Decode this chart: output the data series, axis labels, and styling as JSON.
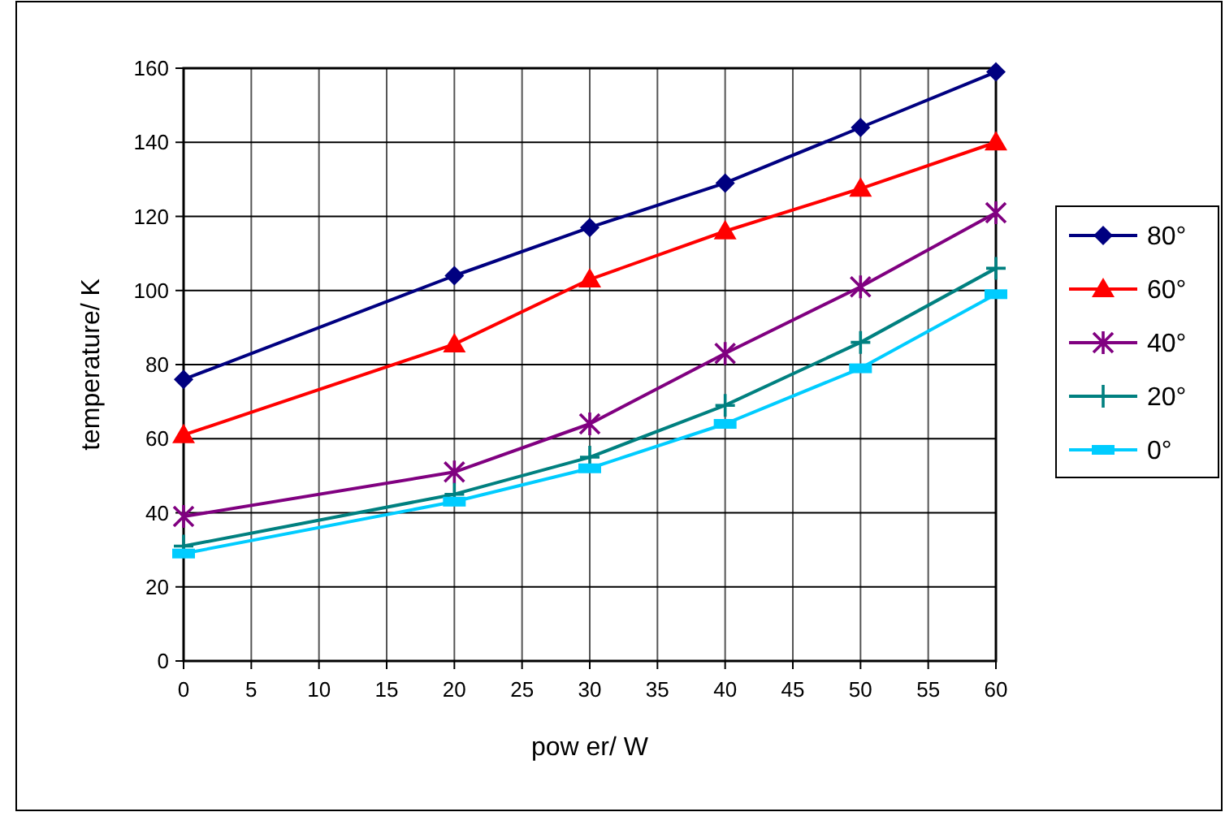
{
  "chart_data": {
    "type": "line",
    "xlabel": "pow er/ W",
    "ylabel": "temperature/ K",
    "x": [
      0,
      20,
      30,
      40,
      50,
      60
    ],
    "xlim": [
      0,
      60
    ],
    "xticks": [
      0,
      5,
      10,
      15,
      20,
      25,
      30,
      35,
      40,
      45,
      50,
      55,
      60
    ],
    "ylim": [
      0,
      160
    ],
    "yticks": [
      0,
      20,
      40,
      60,
      80,
      100,
      120,
      140,
      160
    ],
    "grid": true,
    "legend": "right",
    "line_style": "solid",
    "series": [
      {
        "name": "80°",
        "color": "#000080",
        "marker": "diamond",
        "values": [
          76,
          104,
          117,
          129,
          144,
          159
        ]
      },
      {
        "name": "60°",
        "color": "#ff0000",
        "marker": "triangle",
        "values": [
          61,
          85.5,
          103,
          116,
          127.5,
          140
        ]
      },
      {
        "name": "40°",
        "color": "#800080",
        "marker": "cross",
        "values": [
          39,
          51,
          64,
          83,
          101,
          121
        ]
      },
      {
        "name": "20°",
        "color": "#008080",
        "marker": "cross",
        "values": [
          31,
          45,
          55,
          69,
          86,
          106
        ]
      },
      {
        "name": "0°",
        "color": "#00ccff",
        "marker": "square",
        "values": [
          29,
          43,
          52,
          64,
          79,
          99
        ]
      }
    ]
  }
}
